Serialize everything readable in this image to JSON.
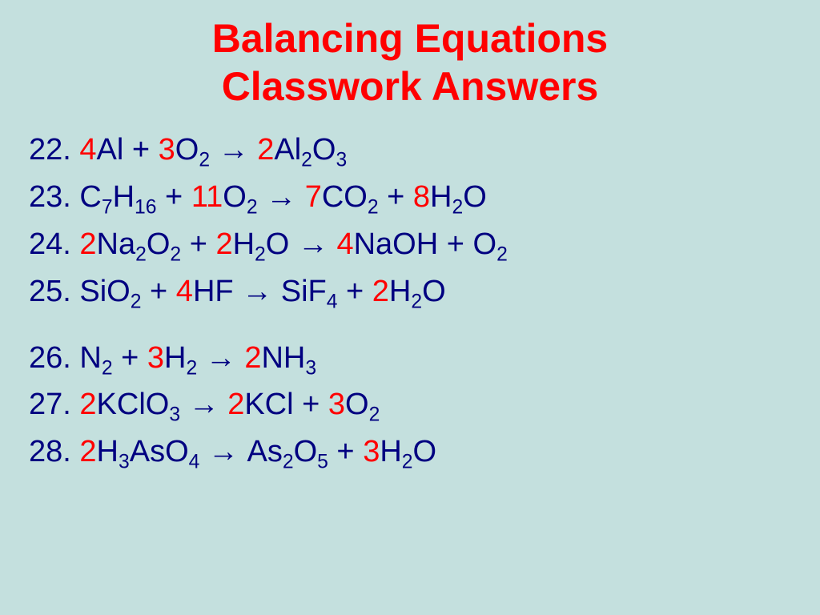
{
  "title_line1": "Balancing Equations",
  "title_line2": "Classwork Answers",
  "colors": {
    "background": "#c4e0de",
    "title": "#ff0000",
    "text": "#000080",
    "coefficient": "#ff0000"
  },
  "typography": {
    "font_family": "Comic Sans MS",
    "title_fontsize": 50,
    "body_fontsize": 38
  },
  "equations": [
    {
      "number": "22",
      "tokens": [
        {
          "t": "num",
          "v": "22. "
        },
        {
          "t": "coef",
          "v": "4"
        },
        {
          "t": "el",
          "v": "Al"
        },
        {
          "t": "txt",
          "v": " + "
        },
        {
          "t": "coef",
          "v": "3"
        },
        {
          "t": "el",
          "v": "O"
        },
        {
          "t": "sub",
          "v": "2"
        },
        {
          "t": "arr"
        },
        {
          "t": "coef",
          "v": "2"
        },
        {
          "t": "el",
          "v": "Al"
        },
        {
          "t": "sub",
          "v": "2"
        },
        {
          "t": "el",
          "v": "O"
        },
        {
          "t": "sub",
          "v": "3"
        }
      ]
    },
    {
      "number": "23",
      "tokens": [
        {
          "t": "num",
          "v": "23. "
        },
        {
          "t": "el",
          "v": "C"
        },
        {
          "t": "sub",
          "v": "7"
        },
        {
          "t": "el",
          "v": "H"
        },
        {
          "t": "sub",
          "v": "16"
        },
        {
          "t": "txt",
          "v": " + "
        },
        {
          "t": "coef",
          "v": "11"
        },
        {
          "t": "el",
          "v": "O"
        },
        {
          "t": "sub",
          "v": "2"
        },
        {
          "t": "arr"
        },
        {
          "t": "coef",
          "v": "7"
        },
        {
          "t": "el",
          "v": "CO"
        },
        {
          "t": "sub",
          "v": "2"
        },
        {
          "t": "txt",
          "v": " + "
        },
        {
          "t": "coef",
          "v": "8"
        },
        {
          "t": "el",
          "v": "H"
        },
        {
          "t": "sub",
          "v": "2"
        },
        {
          "t": "el",
          "v": "O"
        }
      ]
    },
    {
      "number": "24",
      "tokens": [
        {
          "t": "num",
          "v": "24. "
        },
        {
          "t": "coef",
          "v": "2"
        },
        {
          "t": "el",
          "v": "Na"
        },
        {
          "t": "sub",
          "v": "2"
        },
        {
          "t": "el",
          "v": "O"
        },
        {
          "t": "sub",
          "v": "2"
        },
        {
          "t": "txt",
          "v": " + "
        },
        {
          "t": "coef",
          "v": "2"
        },
        {
          "t": "el",
          "v": "H"
        },
        {
          "t": "sub",
          "v": "2"
        },
        {
          "t": "el",
          "v": "O"
        },
        {
          "t": "arr"
        },
        {
          "t": "coef",
          "v": "4"
        },
        {
          "t": "el",
          "v": "NaOH"
        },
        {
          "t": "txt",
          "v": " + "
        },
        {
          "t": "el",
          "v": "O"
        },
        {
          "t": "sub",
          "v": "2"
        }
      ]
    },
    {
      "number": "25",
      "tokens": [
        {
          "t": "num",
          "v": "25. "
        },
        {
          "t": "el",
          "v": "SiO"
        },
        {
          "t": "sub",
          "v": "2"
        },
        {
          "t": "txt",
          "v": " + "
        },
        {
          "t": "coef",
          "v": "4"
        },
        {
          "t": "el",
          "v": "HF"
        },
        {
          "t": "arr"
        },
        {
          "t": "el",
          "v": "SiF"
        },
        {
          "t": "sub",
          "v": "4"
        },
        {
          "t": "txt",
          "v": " + "
        },
        {
          "t": "coef",
          "v": "2"
        },
        {
          "t": "el",
          "v": "H"
        },
        {
          "t": "sub",
          "v": "2"
        },
        {
          "t": "el",
          "v": "O"
        }
      ]
    },
    {
      "number": "26",
      "group_break": true,
      "tokens": [
        {
          "t": "num",
          "v": "26. "
        },
        {
          "t": "el",
          "v": "N"
        },
        {
          "t": "sub",
          "v": "2"
        },
        {
          "t": "txt",
          "v": " + "
        },
        {
          "t": "coef",
          "v": "3"
        },
        {
          "t": "el",
          "v": "H"
        },
        {
          "t": "sub",
          "v": "2"
        },
        {
          "t": "arr"
        },
        {
          "t": "coef",
          "v": "2"
        },
        {
          "t": "el",
          "v": "NH"
        },
        {
          "t": "sub",
          "v": "3"
        }
      ]
    },
    {
      "number": "27",
      "tokens": [
        {
          "t": "num",
          "v": "27. "
        },
        {
          "t": "coef",
          "v": "2"
        },
        {
          "t": "el",
          "v": "KClO"
        },
        {
          "t": "sub",
          "v": "3"
        },
        {
          "t": "arr"
        },
        {
          "t": "coef",
          "v": "2"
        },
        {
          "t": "el",
          "v": "KCl"
        },
        {
          "t": "txt",
          "v": " + "
        },
        {
          "t": "coef",
          "v": "3"
        },
        {
          "t": "el",
          "v": "O"
        },
        {
          "t": "sub",
          "v": "2"
        }
      ]
    },
    {
      "number": "28",
      "tokens": [
        {
          "t": "num",
          "v": "28. "
        },
        {
          "t": "coef",
          "v": "2"
        },
        {
          "t": "el",
          "v": "H"
        },
        {
          "t": "sub",
          "v": "3"
        },
        {
          "t": "el",
          "v": "AsO"
        },
        {
          "t": "sub",
          "v": "4"
        },
        {
          "t": "arr"
        },
        {
          "t": "el",
          "v": "As"
        },
        {
          "t": "sub",
          "v": "2"
        },
        {
          "t": "el",
          "v": "O"
        },
        {
          "t": "sub",
          "v": "5"
        },
        {
          "t": "txt",
          "v": " + "
        },
        {
          "t": "coef",
          "v": "3"
        },
        {
          "t": "el",
          "v": "H"
        },
        {
          "t": "sub",
          "v": "2"
        },
        {
          "t": "el",
          "v": "O"
        }
      ]
    }
  ]
}
